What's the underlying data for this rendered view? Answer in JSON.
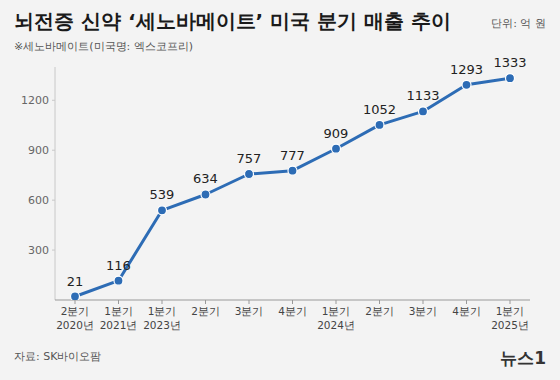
{
  "chart_data": {
    "type": "line",
    "title": "뇌전증 신약 ‘세노바메이트’ 미국 분기 매출 추이",
    "subtitle": "※세노바메이트(미국명: 엑스코프리)",
    "annotations": [
      "단위: 억 원",
      "자료: SK바이오팜",
      "뉴스1"
    ],
    "categories": [
      "2분기\n2020년",
      "1분기\n2021년",
      "1분기\n2023년",
      "2분기",
      "3분기",
      "4분기",
      "1분기\n2024년",
      "2분기",
      "3분기",
      "4분기",
      "1분기\n2025년"
    ],
    "series": [
      {
        "color": "#2d6cb5",
        "marker": "circle",
        "line_style": "solid",
        "values": [
          21,
          116,
          539,
          634,
          757,
          777,
          909,
          1052,
          1133,
          1293,
          1333
        ]
      }
    ],
    "ylim": [
      0,
      1400
    ],
    "yticks": [
      300,
      600,
      900,
      1200
    ],
    "grid": false,
    "data_labels": true
  }
}
